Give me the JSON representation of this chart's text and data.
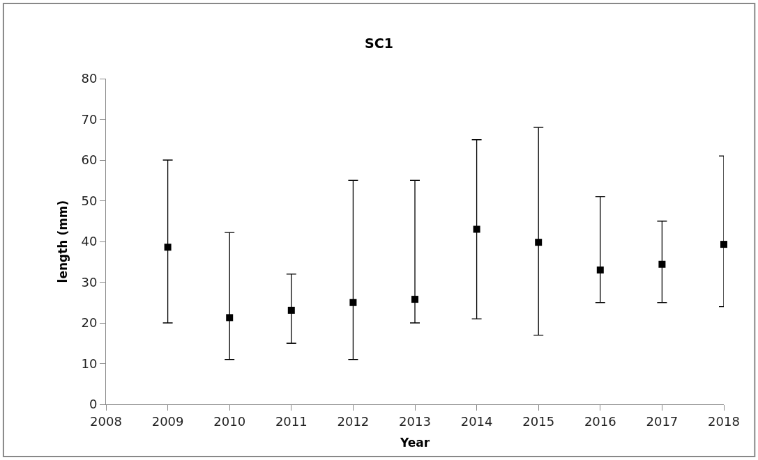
{
  "chart_data": {
    "type": "scatter",
    "title": "SC1",
    "xlabel": "Year",
    "ylabel": "length (mm)",
    "x": [
      2009,
      2010,
      2011,
      2012,
      2013,
      2014,
      2015,
      2016,
      2017,
      2018
    ],
    "series": [
      {
        "color": "#000000",
        "values": [
          38.6,
          21.3,
          23.1,
          25,
          25.8,
          43,
          39.8,
          33,
          34.4,
          39.3
        ],
        "errors": [
          [
            20,
            60
          ],
          [
            11,
            42.2
          ],
          [
            15,
            32
          ],
          [
            11,
            55
          ],
          [
            20,
            55
          ],
          [
            21,
            65
          ],
          [
            17,
            68
          ],
          [
            25,
            51
          ],
          [
            25,
            45
          ],
          [
            24,
            61
          ]
        ]
      }
    ],
    "xlim": [
      2008,
      2018
    ],
    "xticks": [
      2008,
      2009,
      2010,
      2011,
      2012,
      2013,
      2014,
      2015,
      2016,
      2017,
      2018
    ],
    "ylim": [
      0,
      80
    ],
    "yticks": [
      0,
      10,
      20,
      30,
      40,
      50,
      60,
      70,
      80
    ],
    "marker": "square"
  }
}
